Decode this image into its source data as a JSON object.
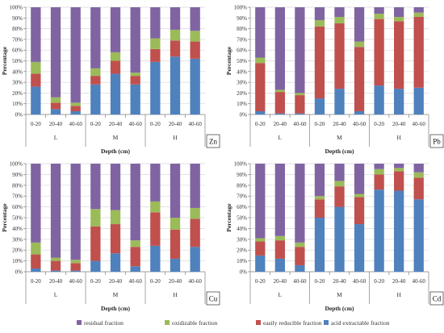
{
  "colors": {
    "acid_extractable": "#4F81BD",
    "easily_reducible": "#C0504D",
    "oxidizable": "#9BBB59",
    "residual": "#8064A2",
    "axis": "#7f7f7f",
    "grid": "#d9d9d9"
  },
  "legend": {
    "residual": "residual fraction",
    "oxidizable": "oxidizable fraction",
    "reducible": "easily reducible fraction",
    "acid": "acid extractable fraction"
  },
  "chart_data": [
    {
      "type": "bar",
      "stacked": true,
      "metal": "Zn",
      "ylabel": "Percentage",
      "xlabel": "Depth (cm)",
      "ylim": [
        0,
        100
      ],
      "yticks": [
        "0%",
        "10%",
        "20%",
        "30%",
        "40%",
        "50%",
        "60%",
        "70%",
        "80%",
        "90%",
        "100%"
      ],
      "categories": [
        "0-20",
        "20-40",
        "40-60",
        "0-20",
        "20-40",
        "40-60",
        "0-20",
        "20-40",
        "40-60"
      ],
      "groups": [
        "L",
        "M",
        "H"
      ],
      "series": [
        {
          "name": "acid extractable fraction",
          "values": [
            26,
            5,
            3,
            28,
            38,
            28,
            49,
            54,
            52
          ]
        },
        {
          "name": "easily reducible fraction",
          "values": [
            12,
            6,
            5,
            8,
            12,
            8,
            12,
            15,
            16
          ]
        },
        {
          "name": "oxidizable fraction",
          "values": [
            11,
            5,
            3,
            7,
            8,
            3,
            10,
            10,
            10
          ]
        },
        {
          "name": "residual fraction",
          "values": [
            51,
            84,
            89,
            57,
            42,
            61,
            29,
            21,
            22
          ]
        }
      ]
    },
    {
      "type": "bar",
      "stacked": true,
      "metal": "Pb",
      "ylabel": "Percentage",
      "xlabel": "Depth (cm)",
      "ylim": [
        0,
        100
      ],
      "yticks": [
        "0%",
        "10%",
        "20%",
        "30%",
        "40%",
        "50%",
        "60%",
        "70%",
        "80%",
        "90%",
        "100%"
      ],
      "categories": [
        "0-20",
        "20-40",
        "40-60",
        "0-20",
        "20-40",
        "40-60",
        "0-20",
        "20-40",
        "40-60"
      ],
      "groups": [
        "L",
        "M",
        "H"
      ],
      "series": [
        {
          "name": "acid extractable fraction",
          "values": [
            3,
            1,
            1,
            15,
            24,
            3,
            27,
            24,
            25
          ]
        },
        {
          "name": "easily reducible fraction",
          "values": [
            45,
            20,
            17,
            67,
            61,
            60,
            62,
            63,
            66
          ]
        },
        {
          "name": "oxidizable fraction",
          "values": [
            5,
            2,
            2,
            6,
            6,
            5,
            5,
            4,
            4
          ]
        },
        {
          "name": "residual fraction",
          "values": [
            47,
            77,
            80,
            12,
            9,
            32,
            6,
            9,
            5
          ]
        }
      ]
    },
    {
      "type": "bar",
      "stacked": true,
      "metal": "Cu",
      "ylabel": "Percentage",
      "xlabel": "Depth (cm)",
      "ylim": [
        0,
        100
      ],
      "yticks": [
        "0%",
        "10%",
        "20%",
        "30%",
        "40%",
        "50%",
        "60%",
        "70%",
        "80%",
        "90%",
        "100%"
      ],
      "categories": [
        "0-20",
        "20-40",
        "40-60",
        "0-20",
        "20-40",
        "40-60",
        "0-20",
        "20-40",
        "40-60"
      ],
      "groups": [
        "L",
        "M",
        "H"
      ],
      "series": [
        {
          "name": "acid extractable fraction",
          "values": [
            3,
            1,
            1,
            10,
            17,
            5,
            24,
            12,
            23
          ]
        },
        {
          "name": "easily reducible fraction",
          "values": [
            13,
            9,
            7,
            32,
            27,
            18,
            31,
            27,
            26
          ]
        },
        {
          "name": "oxidizable fraction",
          "values": [
            11,
            3,
            3,
            16,
            13,
            6,
            10,
            11,
            10
          ]
        },
        {
          "name": "residual fraction",
          "values": [
            73,
            87,
            89,
            42,
            43,
            71,
            35,
            50,
            41
          ]
        }
      ]
    },
    {
      "type": "bar",
      "stacked": true,
      "metal": "Cd",
      "ylabel": "Percentage",
      "xlabel": "Depth (cm)",
      "ylim": [
        0,
        100
      ],
      "yticks": [
        "0%",
        "10%",
        "20%",
        "30%",
        "40%",
        "50%",
        "60%",
        "70%",
        "80%",
        "90%",
        "100%"
      ],
      "categories": [
        "0-20",
        "20-40",
        "40-60",
        "0-20",
        "20-40",
        "40-60",
        "0-20",
        "20-40",
        "40-60"
      ],
      "groups": [
        "L",
        "M",
        "H"
      ],
      "series": [
        {
          "name": "acid extractable fraction",
          "values": [
            15,
            12,
            6,
            50,
            60,
            44,
            76,
            75,
            67
          ]
        },
        {
          "name": "easily reducible fraction",
          "values": [
            13,
            17,
            17,
            17,
            19,
            25,
            14,
            18,
            20
          ]
        },
        {
          "name": "oxidizable fraction",
          "values": [
            3,
            4,
            4,
            3,
            5,
            3,
            5,
            3,
            5
          ]
        },
        {
          "name": "residual fraction",
          "values": [
            69,
            67,
            73,
            30,
            16,
            28,
            5,
            4,
            8
          ]
        }
      ]
    }
  ]
}
